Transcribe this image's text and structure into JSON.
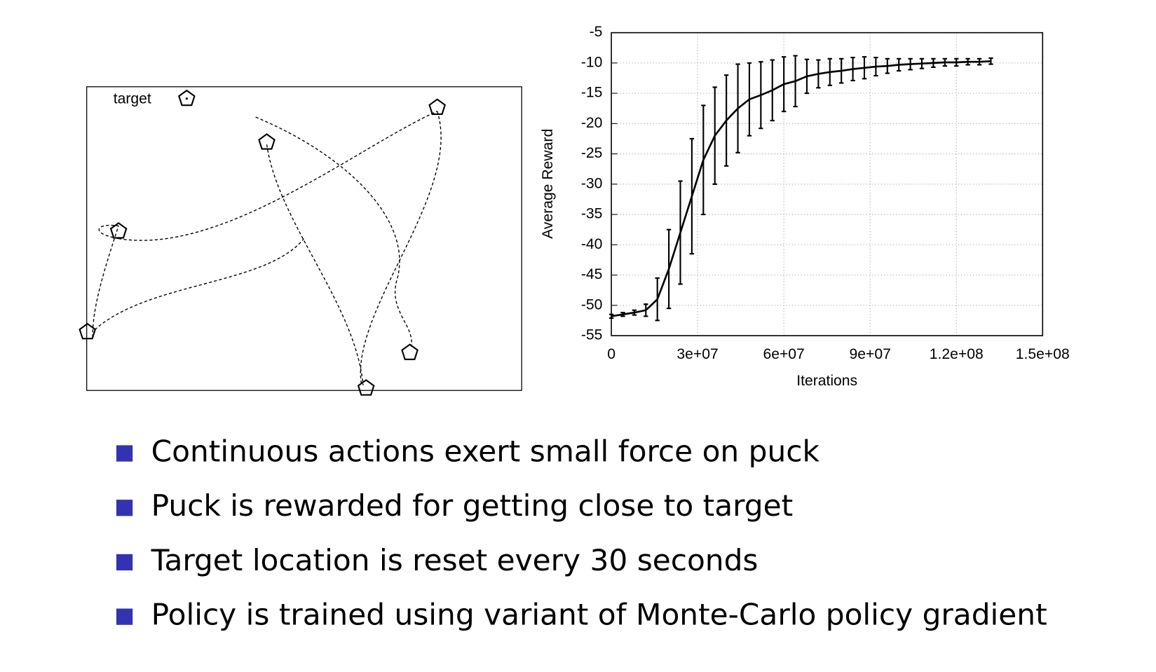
{
  "diagram": {
    "legend_label": "target"
  },
  "chart_data": {
    "type": "line",
    "y_label": "Average Reward",
    "x_label": "Iterations",
    "x": [
      0,
      4000000,
      8000000,
      12000000,
      16000000,
      20000000,
      24000000,
      28000000,
      32000000,
      36000000,
      40000000,
      44000000,
      48000000,
      52000000,
      56000000,
      60000000,
      64000000,
      68000000,
      72000000,
      76000000,
      80000000,
      84000000,
      88000000,
      92000000,
      96000000,
      100000000,
      104000000,
      108000000,
      112000000,
      116000000,
      120000000,
      124000000,
      128000000,
      132000000
    ],
    "series": [
      {
        "color": "#000000",
        "values": [
          -51.8,
          -51.5,
          -51.2,
          -50.8,
          -49,
          -44,
          -38,
          -32,
          -26,
          -22,
          -19.5,
          -17.5,
          -16,
          -15.3,
          -14.5,
          -13.5,
          -13,
          -12.2,
          -11.8,
          -11.5,
          -11.3,
          -11,
          -10.8,
          -10.6,
          -10.5,
          -10.3,
          -10.2,
          -10.1,
          -10,
          -9.9,
          -9.9,
          -9.8,
          -9.8,
          -9.7
        ],
        "errors": [
          0.3,
          0.3,
          0.4,
          1,
          3.5,
          6.5,
          8.5,
          9.5,
          9,
          8,
          7.5,
          7.3,
          6,
          5.5,
          5,
          4.5,
          4.2,
          2.8,
          2.3,
          2.2,
          2,
          1.9,
          1.8,
          1.5,
          1.2,
          1,
          0.9,
          0.8,
          0.7,
          0.6,
          0.6,
          0.5,
          0.5,
          0.5
        ]
      }
    ],
    "xlim": [
      0,
      150000000
    ],
    "xticks": [
      0,
      {
        "value": 30000000,
        "label": "3e+07"
      },
      {
        "value": 60000000,
        "label": "6e+07"
      },
      {
        "value": 90000000,
        "label": "9e+07"
      },
      {
        "value": 120000000,
        "label": "1.2e+08"
      },
      {
        "value": 150000000,
        "label": "1.5e+08"
      }
    ],
    "ylim": [
      -55,
      -5
    ],
    "yticks": [
      -5,
      -10,
      -15,
      -20,
      -25,
      -30,
      -35,
      -40,
      -45,
      -50,
      -55
    ],
    "grid": true
  },
  "bullets": [
    "Continuous actions exert small force on puck",
    "Puck is rewarded for getting close to target",
    "Target location is reset every 30 seconds",
    "Policy is trained using variant of Monte-Carlo policy gradient"
  ],
  "bullet_color": "#3333b2"
}
